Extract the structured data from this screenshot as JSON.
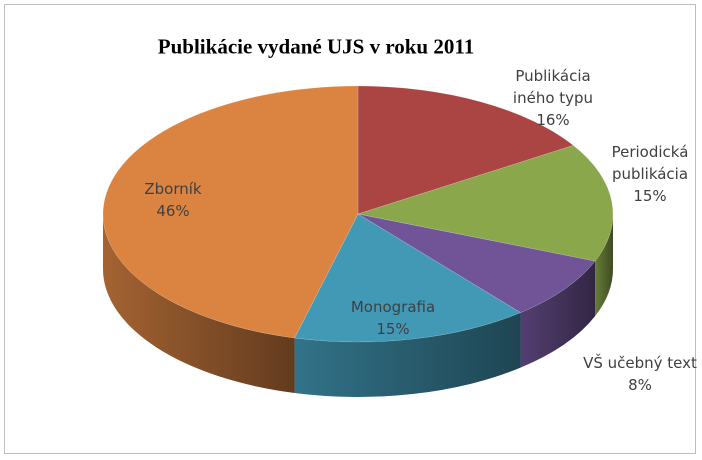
{
  "chart_data": {
    "type": "pie",
    "title": "Publikácie vydané UJS v roku 2011",
    "categories": [
      "Publikácia iného typu",
      "Periodická publikácia",
      "VŠ učebný text",
      "Monografia",
      "Zborník"
    ],
    "values": [
      16,
      15,
      8,
      15,
      46
    ],
    "value_labels": [
      "16%",
      "15%",
      "8%",
      "15%",
      "46%"
    ],
    "colors": [
      "#aa4543",
      "#8aa74b",
      "#705497",
      "#4299b6",
      "#db8442"
    ]
  }
}
